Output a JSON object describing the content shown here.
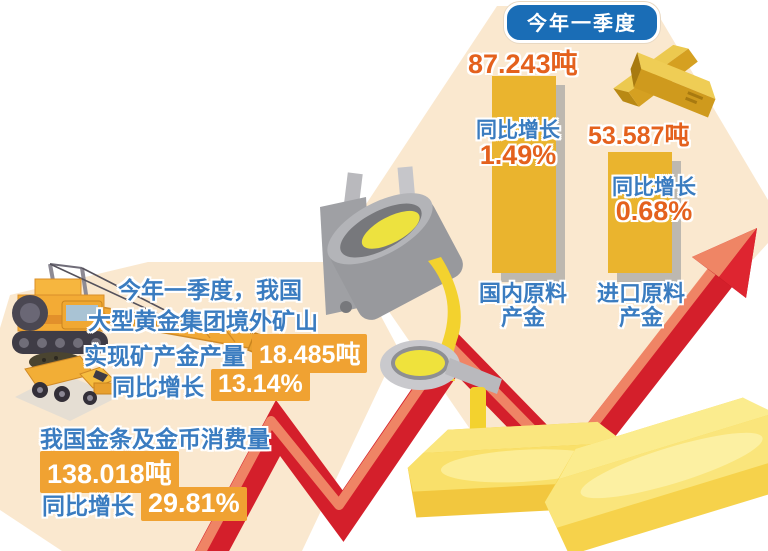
{
  "title_badge": "今年一季度",
  "colors": {
    "panel_cream": "#fae8cf",
    "badge_blue": "#1a6db6",
    "text_blue": "#3a7cc0",
    "text_orange": "#e4611d",
    "bar_gold": "#eab42e",
    "value_box_gold": "#f0a232",
    "arrow_red": "#d91f2a",
    "ingot_gold": "#f6d24b"
  },
  "bars": [
    {
      "value": "87.243吨",
      "growth_label": "同比增长",
      "growth_value": "1.49%",
      "name_line1": "国内原料",
      "name_line2": "产金"
    },
    {
      "value": "53.587吨",
      "growth_label": "同比增长",
      "growth_value": "0.68%",
      "name_line1": "进口原料",
      "name_line2": "产金"
    }
  ],
  "overseas_block": {
    "line1": "今年一季度，我国",
    "line2": "大型黄金集团境外矿山",
    "line3_label": "实现矿产金产量",
    "line3_value": "18.485吨",
    "line4_label": "同比增长",
    "line4_value": "13.14%"
  },
  "consumption_block": {
    "line1": "我国金条及金币消费量",
    "value": "138.018吨",
    "growth_label": "同比增长",
    "growth_value": "29.81%"
  },
  "illustrations": [
    "excavator",
    "dump-truck",
    "crucible-pouring-gold",
    "gold-bars-small",
    "gold-ingots-large",
    "rising-trend-arrow"
  ],
  "chart_data": {
    "type": "bar",
    "title": "今年一季度",
    "categories": [
      "国内原料产金",
      "进口原料产金"
    ],
    "values": [
      87.243,
      53.587
    ],
    "value_unit": "吨",
    "growth_pct": [
      1.49,
      0.68
    ],
    "ylim": [
      0,
      90
    ],
    "legend": false,
    "grid": false,
    "annotations": [
      {
        "label": "大型黄金集团境外矿山实现矿产金产量",
        "value": 18.485,
        "unit": "吨",
        "growth_pct": 13.14
      },
      {
        "label": "我国金条及金币消费量",
        "value": 138.018,
        "unit": "吨",
        "growth_pct": 29.81
      }
    ]
  }
}
